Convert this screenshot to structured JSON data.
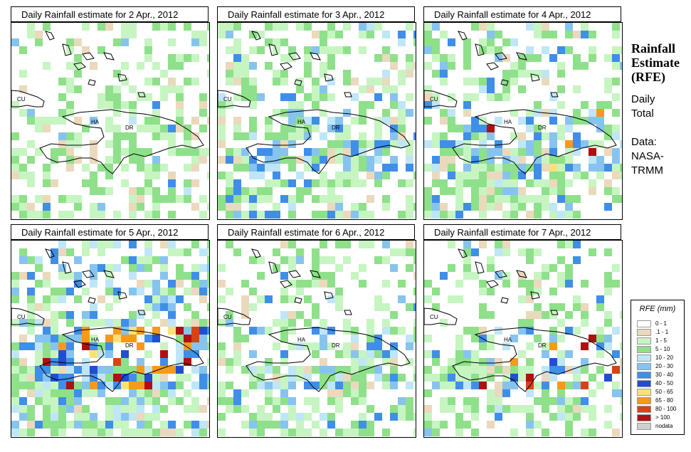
{
  "panels": [
    {
      "title": "Daily Rainfall estimate for  2 Apr., 2012"
    },
    {
      "title": "Daily Rainfall estimate for  3 Apr., 2012"
    },
    {
      "title": "Daily Rainfall estimate for  4 Apr., 2012"
    },
    {
      "title": "Daily Rainfall estimate for  5 Apr., 2012"
    },
    {
      "title": "Daily Rainfall estimate for  6 Apr., 2012"
    },
    {
      "title": "Daily Rainfall estimate for  7 Apr., 2012"
    }
  ],
  "country_labels": {
    "cu": "CU",
    "ha": "HA",
    "dr": "DR"
  },
  "side": {
    "title_1": "Rainfall",
    "title_2": "Estimate",
    "title_3": "(RFE)",
    "line_1": "Daily",
    "line_2": "Total",
    "line_3": "Data:",
    "line_4": "NASA-",
    "line_5": "TRMM"
  },
  "legend": {
    "title": "RFE (mm)",
    "items": [
      {
        "label": "0 - 1",
        "color": "#ffffff"
      },
      {
        "label": ".1 - 1",
        "color": "#ead9bc"
      },
      {
        "label": "1 - 5",
        "color": "#c6f5c2"
      },
      {
        "label": "5 - 10",
        "color": "#8fe08a"
      },
      {
        "label": "10 - 20",
        "color": "#bfe6f7"
      },
      {
        "label": "20 - 30",
        "color": "#86c4ef"
      },
      {
        "label": "30 - 40",
        "color": "#3f8ee8"
      },
      {
        "label": "40 - 50",
        "color": "#1f4fd0"
      },
      {
        "label": "50 - 65",
        "color": "#f7e27a"
      },
      {
        "label": "65 - 80",
        "color": "#f59a1a"
      },
      {
        "label": "80 - 100",
        "color": "#d84315"
      },
      {
        "label": "> 100",
        "color": "#b01010"
      },
      {
        "label": "nodata",
        "color": "#cfcfcf"
      }
    ]
  }
}
